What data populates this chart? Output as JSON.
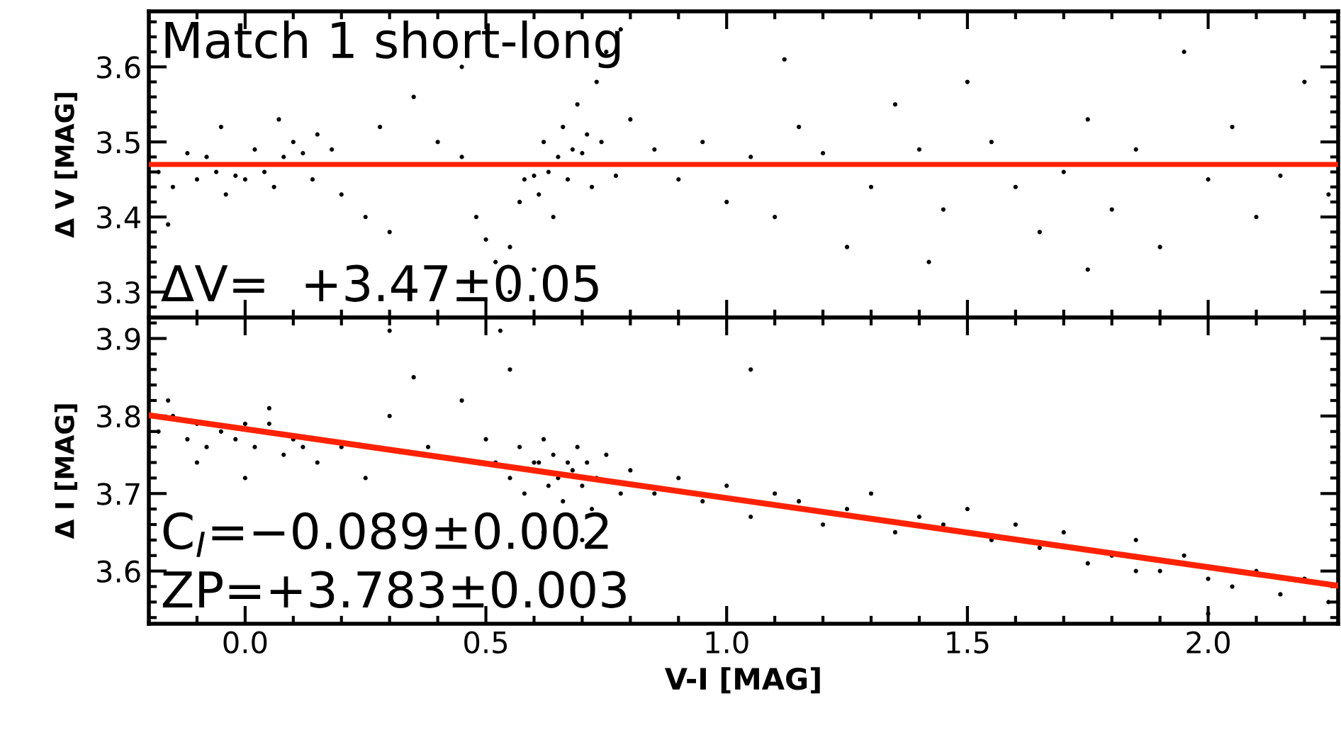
{
  "chart_data": [
    {
      "type": "scatter",
      "ylabel": "Δ V [MAG]",
      "xlim": [
        -0.2,
        2.27
      ],
      "ylim": [
        3.266,
        3.674
      ],
      "yticks": [
        3.3,
        3.4,
        3.5,
        3.6
      ],
      "tick_labels": "y",
      "grid": false,
      "legend": false,
      "marker": "circle",
      "annotations": [
        "Match 1 short-long",
        "ΔV=  +3.47±0.05"
      ],
      "ref_lines": [
        {
          "axis": "y",
          "value": 3.47,
          "color": "#ff2200"
        }
      ],
      "series": [
        {
          "color": "#000000",
          "x": [
            -0.18,
            -0.15,
            -0.12,
            -0.1,
            -0.08,
            -0.06,
            -0.04,
            -0.02,
            0.0,
            0.02,
            0.04,
            0.06,
            0.08,
            0.1,
            0.12,
            0.14,
            -0.16,
            -0.05,
            0.07,
            0.15,
            0.18,
            0.2,
            0.25,
            0.3,
            0.28,
            0.35,
            0.4,
            0.45,
            0.48,
            0.5,
            0.52,
            0.55,
            0.57,
            0.58,
            0.6,
            0.61,
            0.62,
            0.63,
            0.64,
            0.65,
            0.66,
            0.67,
            0.68,
            0.69,
            0.7,
            0.71,
            0.72,
            0.73,
            0.74,
            0.75,
            0.77,
            0.78,
            0.8,
            0.6,
            0.55,
            0.45,
            0.85,
            0.9,
            0.95,
            1.0,
            1.05,
            1.1,
            1.15,
            1.2,
            1.25,
            1.3,
            1.35,
            1.4,
            1.45,
            1.5,
            1.55,
            1.6,
            1.65,
            1.7,
            1.75,
            1.8,
            1.85,
            1.9,
            1.95,
            2.0,
            2.05,
            2.1,
            2.15,
            2.2,
            2.25,
            1.75,
            1.12,
            1.42
          ],
          "values": [
            3.46,
            3.44,
            3.485,
            3.45,
            3.48,
            3.46,
            3.43,
            3.455,
            3.45,
            3.49,
            3.46,
            3.44,
            3.48,
            3.5,
            3.485,
            3.45,
            3.39,
            3.52,
            3.53,
            3.51,
            3.49,
            3.43,
            3.4,
            3.38,
            3.52,
            3.56,
            3.5,
            3.48,
            3.4,
            3.37,
            3.34,
            3.36,
            3.42,
            3.45,
            3.455,
            3.43,
            3.5,
            3.46,
            3.4,
            3.48,
            3.52,
            3.45,
            3.49,
            3.55,
            3.485,
            3.51,
            3.44,
            3.58,
            3.5,
            3.62,
            3.455,
            3.65,
            3.53,
            3.33,
            3.3,
            3.6,
            3.49,
            3.45,
            3.5,
            3.42,
            3.48,
            3.4,
            3.52,
            3.485,
            3.36,
            3.44,
            3.55,
            3.49,
            3.41,
            3.58,
            3.5,
            3.44,
            3.38,
            3.46,
            3.53,
            3.41,
            3.49,
            3.36,
            3.62,
            3.45,
            3.52,
            3.4,
            3.455,
            3.58,
            3.43,
            3.33,
            3.61,
            3.34
          ]
        }
      ]
    },
    {
      "type": "scatter",
      "ylabel": "Δ I [MAG]",
      "xlabel": "V-I [MAG]",
      "xlim": [
        -0.2,
        2.27
      ],
      "xticks": [
        {
          "value": 0,
          "label": "0.0"
        },
        0.5,
        {
          "value": 1,
          "label": "1.0"
        },
        1.5,
        {
          "value": 2,
          "label": "2.0"
        }
      ],
      "ylim": [
        3.532,
        3.927
      ],
      "yticks": [
        3.6,
        3.7,
        3.8,
        3.9
      ],
      "grid": false,
      "legend": false,
      "marker": "circle",
      "annotations": [
        "C$_{I}$=−0.089±0.002",
        "ZP=+3.783±0.003"
      ],
      "series": [
        {
          "color": "#000000",
          "x": [
            -0.18,
            -0.15,
            -0.12,
            -0.1,
            -0.08,
            -0.05,
            -0.02,
            0.0,
            0.02,
            0.05,
            0.08,
            0.1,
            0.12,
            0.15,
            -0.16,
            -0.1,
            0.0,
            0.05,
            0.2,
            0.25,
            0.3,
            0.35,
            0.38,
            0.45,
            0.5,
            0.52,
            0.55,
            0.57,
            0.58,
            0.6,
            0.61,
            0.62,
            0.63,
            0.64,
            0.65,
            0.66,
            0.67,
            0.68,
            0.69,
            0.7,
            0.71,
            0.72,
            0.73,
            0.75,
            0.78,
            0.8,
            0.62,
            0.7,
            0.55,
            0.53,
            0.3,
            0.85,
            0.9,
            0.95,
            1.0,
            1.05,
            1.1,
            1.15,
            1.2,
            1.25,
            1.3,
            1.35,
            1.4,
            1.45,
            1.5,
            1.55,
            1.6,
            1.65,
            1.7,
            1.75,
            1.8,
            1.85,
            1.9,
            1.95,
            2.0,
            2.05,
            2.1,
            2.15,
            2.2,
            2.25,
            1.05,
            1.85,
            2.0
          ],
          "values": [
            3.78,
            3.8,
            3.77,
            3.79,
            3.76,
            3.78,
            3.77,
            3.79,
            3.76,
            3.79,
            3.75,
            3.77,
            3.76,
            3.74,
            3.82,
            3.74,
            3.72,
            3.81,
            3.76,
            3.72,
            3.8,
            3.85,
            3.76,
            3.82,
            3.77,
            3.74,
            3.72,
            3.76,
            3.7,
            3.74,
            3.74,
            3.77,
            3.71,
            3.75,
            3.72,
            3.69,
            3.74,
            3.73,
            3.76,
            3.71,
            3.74,
            3.68,
            3.72,
            3.75,
            3.7,
            3.73,
            3.65,
            3.64,
            3.86,
            3.91,
            3.91,
            3.7,
            3.72,
            3.69,
            3.71,
            3.67,
            3.7,
            3.69,
            3.66,
            3.68,
            3.7,
            3.65,
            3.67,
            3.66,
            3.68,
            3.64,
            3.66,
            3.63,
            3.65,
            3.61,
            3.62,
            3.64,
            3.6,
            3.62,
            3.59,
            3.58,
            3.6,
            3.57,
            3.59,
            3.56,
            3.86,
            3.6,
            3.545
          ]
        },
        {
          "type": "line",
          "marker": "none",
          "color": "#ff2200",
          "x": [
            -0.2,
            2.27
          ],
          "values": [
            3.801,
            3.581
          ]
        }
      ]
    }
  ]
}
